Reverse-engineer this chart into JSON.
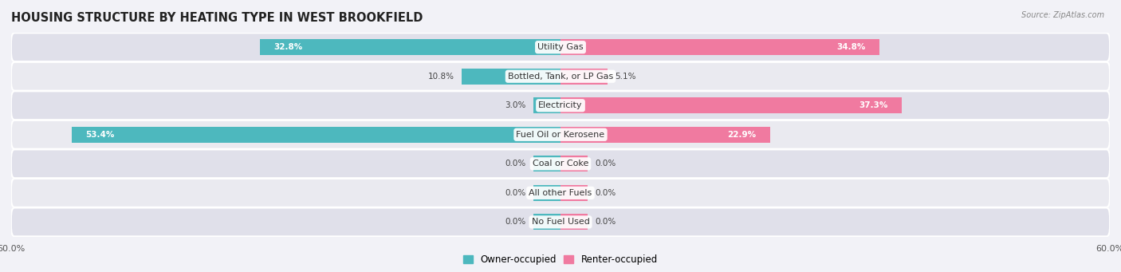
{
  "title": "HOUSING STRUCTURE BY HEATING TYPE IN WEST BROOKFIELD",
  "source": "Source: ZipAtlas.com",
  "categories": [
    "Utility Gas",
    "Bottled, Tank, or LP Gas",
    "Electricity",
    "Fuel Oil or Kerosene",
    "Coal or Coke",
    "All other Fuels",
    "No Fuel Used"
  ],
  "owner_values": [
    32.8,
    10.8,
    3.0,
    53.4,
    0.0,
    0.0,
    0.0
  ],
  "renter_values": [
    34.8,
    5.1,
    37.3,
    22.9,
    0.0,
    0.0,
    0.0
  ],
  "owner_color": "#4db8be",
  "renter_color": "#f07aa0",
  "max_value": 60.0,
  "background_color": "#f2f2f7",
  "row_bg_even": "#eaeaf0",
  "row_bg_odd": "#e0e0ea",
  "title_fontsize": 10.5,
  "label_fontsize": 8,
  "value_fontsize": 7.5,
  "legend_fontsize": 8.5,
  "zero_stub": 3.0
}
